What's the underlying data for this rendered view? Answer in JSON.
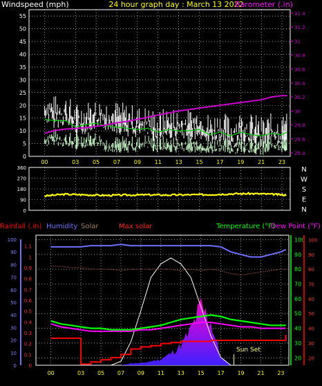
{
  "colors": {
    "background": "#000000",
    "plot_border": "#ffffff",
    "grid": "#ffffff",
    "windspeed": "#ffffff",
    "gust": "#ccffcc",
    "wind_avg": "#00cc00",
    "barometer": "#cc00cc",
    "direction": "#ffff00",
    "rain": "#ff0000",
    "humidity": "#7070ff",
    "solar": "#8000ff",
    "max_solar": "#ffffff",
    "temperature": "#00ff00",
    "dew_point": "#ff00ff",
    "avg_temp": "#804040",
    "sunset_marker": "#ffff66"
  },
  "header": {
    "windspeed_label": "Windspeed (mph)",
    "title": "24 hour graph day : March 13 2022",
    "barometer_label": "Barometer (.in)"
  },
  "bottom_header": {
    "rainfall_label": "Rainfall (.in)",
    "humidity_label": "Humidity",
    "solar_label": "Solar",
    "max_solar_label": "Max solar",
    "temperature_label": "Temperature (°F)",
    "dewpoint_label": "Dew Point (°F)"
  },
  "hour_ticks": [
    "00",
    "03",
    "05",
    "07",
    "09",
    "11",
    "13",
    "15",
    "17",
    "19",
    "21",
    "23"
  ],
  "sunset_label": "Sun Set",
  "chart_data": [
    {
      "type": "line",
      "name": "wind_barometer",
      "x_hours": [
        0,
        1,
        2,
        3,
        4,
        5,
        6,
        7,
        8,
        9,
        10,
        11,
        12,
        13,
        14,
        15,
        16,
        17,
        18,
        19,
        20,
        21,
        22,
        23,
        23.5
      ],
      "y_left_ticks": [
        0,
        5,
        10,
        15,
        20,
        25,
        30,
        35,
        40,
        45,
        50,
        55
      ],
      "y_left_range": [
        0,
        57.5
      ],
      "y_right_ticks": [
        "29.4",
        "29.6",
        "29.8",
        "30",
        "30.2",
        "30.4",
        "30.6",
        "30.8",
        "31",
        "31.2",
        "31.4"
      ],
      "y_right_range": [
        29.35,
        31.45
      ],
      "series": [
        {
          "name": "Windspeed",
          "values": [
            20,
            18,
            19,
            15,
            16,
            17,
            17,
            16,
            15,
            14,
            14,
            12,
            14,
            13,
            13,
            14,
            11,
            12,
            10,
            12,
            11,
            10,
            11,
            10,
            12
          ]
        },
        {
          "name": "Gust",
          "values": [
            7,
            8,
            7,
            6,
            7,
            7,
            5,
            5,
            5,
            5,
            6,
            5,
            5,
            5,
            5,
            5,
            4,
            5,
            4,
            5,
            4,
            4,
            5,
            5,
            5
          ]
        },
        {
          "name": "Barometer",
          "values": [
            29.68,
            29.72,
            29.74,
            29.75,
            29.76,
            29.78,
            29.8,
            29.83,
            29.85,
            29.88,
            29.91,
            29.94,
            29.97,
            30.0,
            30.02,
            30.04,
            30.06,
            30.08,
            30.1,
            30.12,
            30.14,
            30.16,
            30.2,
            30.22,
            30.22
          ]
        }
      ]
    },
    {
      "type": "line",
      "name": "wind_direction",
      "y_ticks": [
        "360",
        "270",
        "180",
        "90",
        "0"
      ],
      "y_range": [
        0,
        360
      ],
      "compass": [
        "N",
        "W",
        "S",
        "E",
        "N"
      ],
      "x_hours": [
        0,
        2,
        4,
        6,
        8,
        10,
        12,
        14,
        16,
        18,
        20,
        22,
        23.5
      ],
      "series": [
        {
          "name": "Direction",
          "values": [
            120,
            135,
            130,
            125,
            128,
            130,
            128,
            130,
            132,
            138,
            140,
            135,
            128
          ]
        }
      ]
    },
    {
      "type": "line",
      "name": "rain_humidity_temperature",
      "x_hours": [
        0,
        1,
        2,
        3,
        4,
        5,
        6,
        7,
        8,
        9,
        10,
        11,
        12,
        13,
        14,
        15,
        16,
        17,
        18,
        19,
        20,
        21,
        22,
        23,
        23.5
      ],
      "y_rain_ticks": [
        "0",
        "0.1",
        "0.2",
        "0.3",
        "0.4",
        "0.5",
        "0.6",
        "0.7",
        "0.8",
        "0.9",
        "1",
        "1.1"
      ],
      "y_rain_range": [
        0,
        1.2
      ],
      "y_humidity_ticks": [
        0,
        10,
        20,
        30,
        40,
        50,
        60,
        70,
        80,
        90,
        100
      ],
      "y_temp_ticks": [
        20,
        30,
        40,
        50,
        60,
        70,
        80,
        90,
        100
      ],
      "y_temp_range": [
        15,
        103
      ],
      "y_dew_ticks": [
        20,
        30,
        40,
        50,
        60,
        70,
        80,
        90,
        100
      ],
      "series": [
        {
          "name": "Rainfall",
          "values": [
            0.25,
            0.25,
            0.25,
            0.01,
            0.03,
            0.05,
            0.07,
            0.1,
            0.15,
            0.17,
            0.18,
            0.2,
            0.21,
            0.22,
            0.22,
            0.22,
            0.23,
            0.23,
            0.23,
            0.23,
            0.23,
            0.23,
            0.23,
            0.23,
            0.28
          ]
        },
        {
          "name": "Humidity",
          "values": [
            94,
            94,
            94,
            94,
            95,
            95,
            95,
            96,
            95,
            95,
            95,
            95,
            95,
            95,
            95,
            95,
            95,
            94,
            90,
            88,
            86,
            86,
            88,
            90,
            92
          ]
        },
        {
          "name": "Temperature",
          "values": [
            45,
            43,
            42,
            41,
            40,
            40,
            39,
            39,
            39,
            40,
            41,
            42,
            44,
            46,
            47,
            48,
            49,
            48,
            46,
            45,
            44,
            43,
            42,
            42,
            42
          ]
        },
        {
          "name": "Dew Point",
          "values": [
            43,
            41,
            40,
            39,
            38,
            38,
            38,
            38,
            38,
            39,
            39,
            40,
            41,
            42,
            43,
            44,
            44,
            43,
            42,
            41,
            41,
            40,
            40,
            40,
            40
          ]
        },
        {
          "name": "Avg Temp",
          "values": [
            82,
            82,
            81,
            81,
            80,
            80,
            80,
            79,
            80,
            80,
            80,
            80,
            80,
            79,
            80,
            79,
            80,
            79,
            77,
            76,
            77,
            78,
            79,
            80,
            80
          ]
        },
        {
          "name": "Max solar",
          "values": [
            0,
            0,
            0,
            0,
            0,
            0,
            0,
            2,
            12,
            28,
            45,
            52,
            55,
            52,
            45,
            30,
            15,
            4,
            0,
            0,
            0,
            0,
            0,
            0,
            0
          ]
        },
        {
          "name": "Solar",
          "values": [
            0,
            0,
            0,
            0,
            0,
            0,
            0,
            0,
            1,
            1,
            2,
            3,
            6,
            10,
            18,
            30,
            22,
            4,
            0,
            0,
            0,
            0,
            0,
            0,
            0
          ]
        }
      ]
    }
  ]
}
